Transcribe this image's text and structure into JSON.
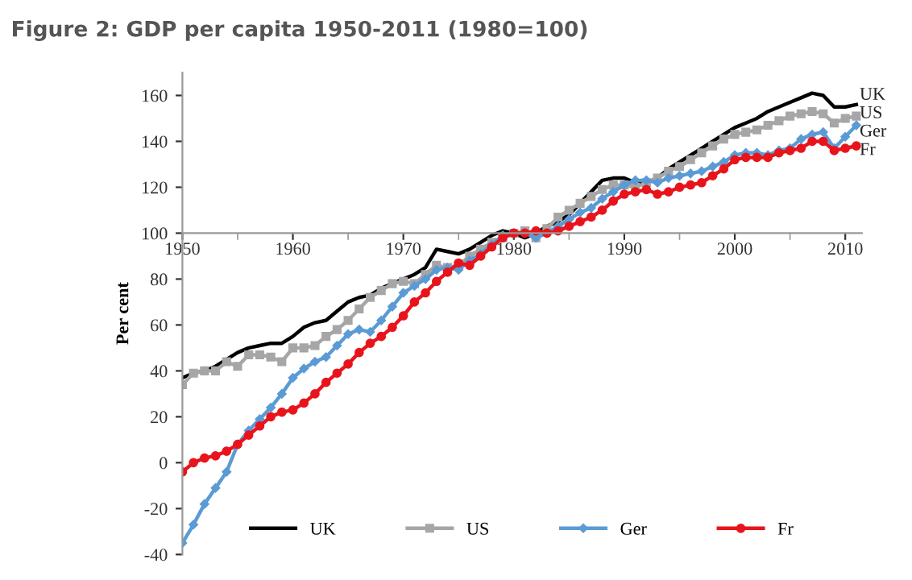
{
  "chart_data": {
    "type": "line",
    "title": "Figure 2: GDP per capita 1950-2011 (1980=100)",
    "ylabel": "Per cent",
    "x": [
      1950,
      1951,
      1952,
      1953,
      1954,
      1955,
      1956,
      1957,
      1958,
      1959,
      1960,
      1961,
      1962,
      1963,
      1964,
      1965,
      1966,
      1967,
      1968,
      1969,
      1970,
      1971,
      1972,
      1973,
      1974,
      1975,
      1976,
      1977,
      1978,
      1979,
      1980,
      1981,
      1982,
      1983,
      1984,
      1985,
      1986,
      1987,
      1988,
      1989,
      1990,
      1991,
      1992,
      1993,
      1994,
      1995,
      1996,
      1997,
      1998,
      1999,
      2000,
      2001,
      2002,
      2003,
      2004,
      2005,
      2006,
      2007,
      2008,
      2009,
      2010,
      2011
    ],
    "series": [
      {
        "name": "UK",
        "color": "#000000",
        "marker": "none",
        "values": [
          37,
          39,
          40,
          42,
          45,
          48,
          50,
          51,
          52,
          52,
          55,
          59,
          61,
          62,
          66,
          70,
          72,
          73,
          76,
          78,
          80,
          82,
          85,
          93,
          92,
          91,
          93,
          96,
          99,
          101,
          100,
          98,
          100,
          103,
          105,
          108,
          113,
          118,
          123,
          124,
          124,
          122,
          122,
          124,
          128,
          131,
          134,
          137,
          140,
          143,
          146,
          148,
          150,
          153,
          155,
          157,
          159,
          161,
          160,
          155,
          155,
          156
        ]
      },
      {
        "name": "US",
        "color": "#a6a6a6",
        "marker": "square",
        "values": [
          34,
          39,
          40,
          40,
          44,
          42,
          47,
          47,
          46,
          44,
          50,
          50,
          51,
          55,
          58,
          62,
          67,
          72,
          75,
          78,
          79,
          78,
          82,
          86,
          85,
          86,
          90,
          93,
          96,
          98,
          100,
          101,
          98,
          102,
          107,
          110,
          113,
          116,
          119,
          121,
          121,
          120,
          122,
          124,
          127,
          129,
          132,
          135,
          138,
          141,
          143,
          144,
          145,
          147,
          149,
          151,
          152,
          153,
          152,
          148,
          150,
          151
        ]
      },
      {
        "name": "Ger",
        "color": "#5b9bd5",
        "marker": "diamond",
        "values": [
          -35,
          -27,
          -18,
          -11,
          -4,
          8,
          14,
          19,
          24,
          30,
          37,
          41,
          44,
          46,
          51,
          56,
          58,
          57,
          62,
          68,
          74,
          77,
          80,
          84,
          85,
          84,
          88,
          91,
          95,
          99,
          100,
          100,
          98,
          100,
          103,
          106,
          109,
          111,
          115,
          118,
          121,
          123,
          123,
          122,
          124,
          125,
          126,
          127,
          129,
          131,
          134,
          135,
          135,
          134,
          136,
          137,
          141,
          143,
          144,
          137,
          142,
          147
        ]
      },
      {
        "name": "Fr",
        "color": "#e8141c",
        "marker": "circle",
        "values": [
          -4,
          0,
          2,
          3,
          5,
          8,
          12,
          16,
          20,
          22,
          23,
          26,
          30,
          35,
          39,
          43,
          48,
          52,
          55,
          59,
          64,
          70,
          74,
          79,
          83,
          87,
          86,
          90,
          94,
          98,
          100,
          100,
          101,
          100,
          101,
          103,
          105,
          107,
          110,
          114,
          117,
          118,
          119,
          117,
          118,
          120,
          121,
          122,
          125,
          128,
          132,
          133,
          133,
          133,
          135,
          136,
          137,
          140,
          140,
          136,
          137,
          138
        ]
      }
    ],
    "xlim": [
      1950,
      2011.5
    ],
    "xticks": [
      1950,
      1960,
      1970,
      1980,
      1990,
      2000,
      2010
    ],
    "ylim": [
      -40,
      170
    ],
    "yticks": [
      -40,
      -20,
      0,
      20,
      40,
      60,
      80,
      100,
      120,
      140,
      160
    ],
    "grid": false,
    "legend": "bottom",
    "line_style": "solid"
  }
}
